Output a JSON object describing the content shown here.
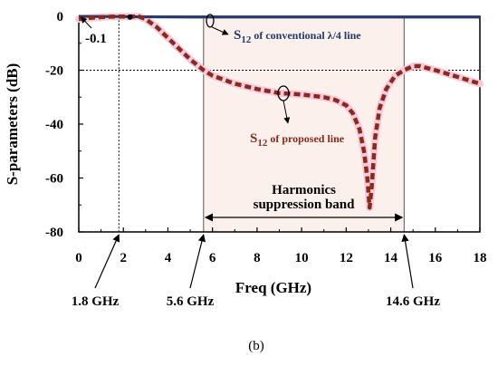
{
  "chart_data": {
    "type": "line",
    "xlabel": "Freq (GHz)",
    "ylabel": "S-parameters (dB)",
    "xlim": [
      0,
      18
    ],
    "ylim": [
      -80,
      0
    ],
    "xticks": [
      "0",
      "2",
      "4",
      "6",
      "8",
      "10",
      "12",
      "14",
      "16",
      "18"
    ],
    "yticks": [
      "0",
      "-20",
      "-40",
      "-60",
      "-80"
    ],
    "grid": false,
    "reference_lines": {
      "y": [
        -20
      ],
      "x": [
        1.8
      ]
    },
    "band": {
      "from": 5.6,
      "to": 14.6,
      "label_line1": "Harmonics",
      "label_line2": "suppression band"
    },
    "series": [
      {
        "name": "S12 of conventional λ/4 line",
        "color": "#1f3a6b",
        "x": [
          0,
          1,
          1.8,
          3,
          5,
          7,
          9,
          11,
          13,
          15,
          17,
          18
        ],
        "y": [
          0,
          -0.1,
          -0.1,
          -0.2,
          -0.3,
          -0.3,
          -0.3,
          -0.3,
          -0.3,
          -0.3,
          -0.3,
          -0.3
        ]
      },
      {
        "name": "S12 of proposed line",
        "color": "#8b2a1a",
        "x": [
          0,
          0.5,
          1.0,
          1.5,
          1.8,
          2.3,
          2.7,
          3.0,
          3.5,
          4.0,
          4.5,
          5.0,
          5.6,
          6.0,
          7.0,
          8.0,
          9.0,
          10.0,
          11.0,
          11.5,
          12.0,
          12.3,
          12.6,
          12.8,
          12.95,
          13.05,
          13.15,
          13.3,
          13.5,
          13.8,
          14.2,
          14.6,
          15.0,
          15.3,
          16.0,
          17.0,
          18.0
        ],
        "y": [
          -1,
          -0.6,
          -0.3,
          -0.15,
          -0.1,
          -0.1,
          -0.1,
          -1,
          -4,
          -8,
          -12,
          -16,
          -20,
          -22,
          -25,
          -27,
          -28.5,
          -29,
          -30,
          -31,
          -33,
          -36,
          -42,
          -50,
          -60,
          -71,
          -63,
          -45,
          -34,
          -27,
          -22,
          -20,
          -18.5,
          -18.5,
          -20,
          -22.5,
          -25
        ]
      }
    ],
    "annotations": {
      "marker_value": "-0.1",
      "conventional_label_prefix": "S",
      "conventional_label_sub": "12",
      "conventional_label_text": " of conventional λ/4 line",
      "proposed_label_prefix": "S",
      "proposed_label_sub": "12",
      "proposed_label_text": " of proposed line",
      "freq_markers": [
        "1.8 GHz",
        "5.6 GHz",
        "14.6 GHz"
      ]
    },
    "caption": "(b)"
  }
}
